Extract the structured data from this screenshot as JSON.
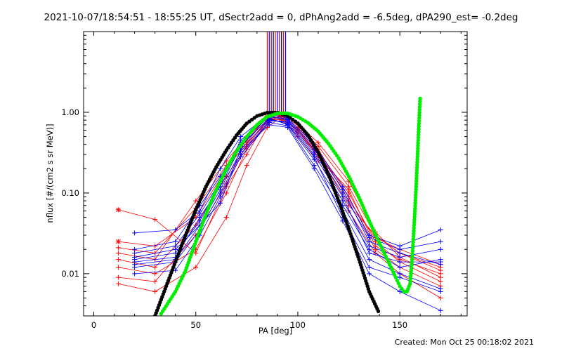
{
  "header": {
    "title": "2021-10-07/18:54:51 - 18:55:25 UT, dSectr2add = 0, dPhAng2add = -6.5deg, dPA290_est= -0.2deg"
  },
  "footer": {
    "created": "Created: Mon Oct 25 00:18:02 2021"
  },
  "colors": {
    "red": "#ff0000",
    "blue": "#0000ff",
    "green": "#00ee00",
    "black": "#000000",
    "marker_lines": [
      "#ff0000",
      "#0000ff",
      "#8000a0",
      "#000000"
    ]
  },
  "chart_data": {
    "type": "line",
    "xlabel": "PA [deg]",
    "ylabel": "nflux [#/(cm2 s sr MeV)]",
    "xlim": [
      -5,
      183
    ],
    "ylim": [
      0.003,
      10
    ],
    "yscale": "log",
    "x_ticks": [
      0,
      50,
      100,
      150
    ],
    "x_tick_labels": [
      "0",
      "50",
      "100",
      "150"
    ],
    "y_ticks": [
      0.01,
      0.1,
      1.0
    ],
    "y_tick_labels": [
      "0.01",
      "0.10",
      "1.00"
    ],
    "legend": "none",
    "grid": false,
    "marker_line_pa": [
      85,
      86,
      87,
      88,
      89,
      90,
      91,
      92,
      93,
      94
    ],
    "red_series": [
      {
        "x": [
          12,
          30,
          50,
          65,
          75,
          85,
          92,
          100,
          110,
          125,
          138,
          150,
          170
        ],
        "y": [
          0.062,
          0.047,
          0.018,
          0.12,
          0.3,
          0.82,
          0.9,
          0.7,
          0.38,
          0.12,
          0.03,
          0.018,
          0.011
        ]
      },
      {
        "x": [
          12,
          30,
          50,
          65,
          75,
          85,
          92,
          100,
          110,
          125,
          138,
          150,
          170
        ],
        "y": [
          0.025,
          0.022,
          0.05,
          0.2,
          0.42,
          0.9,
          0.85,
          0.6,
          0.32,
          0.1,
          0.025,
          0.014,
          0.008
        ]
      },
      {
        "x": [
          12,
          30,
          50,
          65,
          75,
          85,
          92,
          100,
          110,
          125,
          138,
          150,
          170
        ],
        "y": [
          0.018,
          0.015,
          0.08,
          0.25,
          0.5,
          0.85,
          0.8,
          0.55,
          0.3,
          0.09,
          0.02,
          0.012,
          0.007
        ]
      },
      {
        "x": [
          12,
          30,
          50,
          65,
          75,
          85,
          92,
          100,
          110,
          125,
          138,
          150,
          170
        ],
        "y": [
          0.015,
          0.012,
          0.04,
          0.16,
          0.38,
          0.78,
          0.9,
          0.65,
          0.35,
          0.08,
          0.028,
          0.02,
          0.013
        ]
      },
      {
        "x": [
          12,
          30,
          50,
          65,
          75,
          85,
          92,
          100,
          110,
          125,
          138,
          150,
          170
        ],
        "y": [
          0.012,
          0.01,
          0.02,
          0.1,
          0.35,
          0.72,
          0.95,
          0.72,
          0.42,
          0.14,
          0.033,
          0.016,
          0.009
        ]
      },
      {
        "x": [
          12,
          30,
          50,
          65,
          75,
          85,
          92,
          100,
          110,
          125,
          138,
          150,
          170
        ],
        "y": [
          0.0075,
          0.006,
          0.012,
          0.05,
          0.22,
          0.65,
          0.88,
          0.5,
          0.25,
          0.06,
          0.018,
          0.01,
          0.005
        ]
      },
      {
        "x": [
          12,
          30,
          50,
          65,
          75,
          85,
          92,
          100,
          110,
          125,
          138,
          150,
          170
        ],
        "y": [
          0.009,
          0.008,
          0.03,
          0.13,
          0.4,
          0.8,
          0.82,
          0.62,
          0.28,
          0.11,
          0.022,
          0.015,
          0.01
        ]
      },
      {
        "x": [
          12,
          30,
          50,
          65,
          75,
          85,
          92,
          100,
          110,
          125,
          138,
          150,
          170
        ],
        "y": [
          0.021,
          0.018,
          0.065,
          0.22,
          0.45,
          0.88,
          0.92,
          0.58,
          0.3,
          0.07,
          0.03,
          0.018,
          0.012
        ]
      }
    ],
    "blue_series": [
      {
        "x": [
          20,
          40,
          52,
          62,
          72,
          86,
          95,
          108,
          122,
          135,
          150,
          170
        ],
        "y": [
          0.032,
          0.035,
          0.06,
          0.2,
          0.5,
          0.95,
          0.85,
          0.4,
          0.12,
          0.03,
          0.022,
          0.035
        ]
      },
      {
        "x": [
          20,
          40,
          52,
          62,
          72,
          86,
          95,
          108,
          122,
          135,
          150,
          170
        ],
        "y": [
          0.02,
          0.025,
          0.07,
          0.16,
          0.42,
          0.88,
          0.8,
          0.35,
          0.1,
          0.028,
          0.02,
          0.025
        ]
      },
      {
        "x": [
          20,
          40,
          52,
          62,
          72,
          86,
          95,
          108,
          122,
          135,
          150,
          170
        ],
        "y": [
          0.016,
          0.02,
          0.04,
          0.075,
          0.35,
          0.8,
          0.75,
          0.3,
          0.08,
          0.022,
          0.016,
          0.02
        ]
      },
      {
        "x": [
          20,
          40,
          52,
          62,
          72,
          86,
          95,
          108,
          122,
          135,
          150,
          170
        ],
        "y": [
          0.014,
          0.016,
          0.05,
          0.12,
          0.38,
          0.85,
          0.7,
          0.26,
          0.07,
          0.02,
          0.012,
          0.015
        ]
      },
      {
        "x": [
          20,
          40,
          52,
          62,
          72,
          86,
          95,
          108,
          122,
          135,
          150,
          170
        ],
        "y": [
          0.012,
          0.014,
          0.035,
          0.1,
          0.3,
          0.78,
          0.78,
          0.32,
          0.09,
          0.018,
          0.014,
          0.014
        ]
      },
      {
        "x": [
          20,
          40,
          52,
          62,
          72,
          86,
          95,
          108,
          122,
          135,
          150,
          170
        ],
        "y": [
          0.018,
          0.022,
          0.055,
          0.14,
          0.45,
          0.9,
          0.82,
          0.38,
          0.11,
          0.025,
          0.018,
          0.013
        ]
      },
      {
        "x": [
          20,
          40,
          52,
          62,
          72,
          86,
          95,
          108,
          122,
          135,
          150,
          170
        ],
        "y": [
          0.01,
          0.011,
          0.03,
          0.09,
          0.28,
          0.75,
          0.68,
          0.22,
          0.06,
          0.015,
          0.01,
          0.0065
        ]
      },
      {
        "x": [
          20,
          40,
          52,
          62,
          72,
          86,
          95,
          108,
          122,
          135,
          150,
          170
        ],
        "y": [
          0.015,
          0.018,
          0.045,
          0.13,
          0.4,
          0.82,
          0.72,
          0.28,
          0.05,
          0.012,
          0.009,
          0.006
        ]
      },
      {
        "x": [
          20,
          40,
          52,
          62,
          72,
          86,
          95,
          108,
          122,
          135,
          150,
          170
        ],
        "y": [
          0.013,
          0.015,
          0.04,
          0.11,
          0.33,
          0.7,
          0.65,
          0.2,
          0.045,
          0.01,
          0.006,
          0.0035
        ]
      }
    ],
    "green_fit": {
      "x": [
        33,
        40,
        45,
        50,
        55,
        60,
        65,
        70,
        75,
        80,
        85,
        90,
        95,
        100,
        105,
        110,
        115,
        120,
        125,
        130,
        135,
        140,
        145,
        148,
        150,
        152,
        153.5,
        155,
        156,
        157,
        158,
        159,
        160
      ],
      "y": [
        0.0032,
        0.006,
        0.011,
        0.025,
        0.055,
        0.11,
        0.2,
        0.33,
        0.5,
        0.7,
        0.88,
        0.97,
        0.97,
        0.88,
        0.74,
        0.58,
        0.41,
        0.27,
        0.16,
        0.088,
        0.045,
        0.024,
        0.013,
        0.009,
        0.007,
        0.006,
        0.006,
        0.0075,
        0.015,
        0.04,
        0.12,
        0.45,
        1.6
      ]
    },
    "black_fit": {
      "x": [
        30,
        35,
        40,
        45,
        50,
        55,
        60,
        65,
        70,
        75,
        80,
        85,
        90,
        95,
        100,
        105,
        110,
        115,
        120,
        125,
        130,
        135,
        140
      ],
      "y": [
        0.003,
        0.0065,
        0.014,
        0.03,
        0.062,
        0.12,
        0.21,
        0.34,
        0.52,
        0.73,
        0.9,
        0.99,
        0.99,
        0.9,
        0.73,
        0.52,
        0.32,
        0.17,
        0.08,
        0.036,
        0.015,
        0.006,
        0.0032
      ]
    }
  }
}
